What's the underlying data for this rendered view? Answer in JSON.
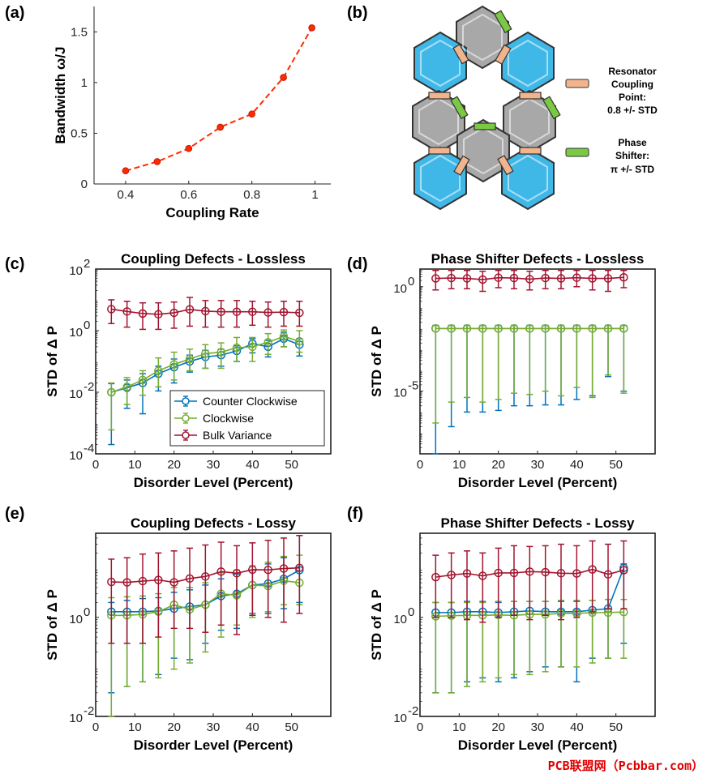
{
  "panel_labels": [
    "(a)",
    "(b)",
    "(c)",
    "(d)",
    "(e)",
    "(f)"
  ],
  "annotations": {
    "resonator": [
      "Resonator",
      "Coupling",
      "Point:",
      "0.8 +/- STD"
    ],
    "phase": [
      "Phase",
      "Shifter:",
      "π +/- STD"
    ]
  },
  "watermark": "PCB联盟网（Pcbbar.com）",
  "colors": {
    "ccw": "#0072BD",
    "cw": "#77AC30",
    "bulk": "#A2142F",
    "red": "#ff2a00",
    "cyan": "#3fb8e8",
    "gray": "#a8a8a8",
    "green": "#7ac943",
    "tan": "#f2b48c"
  },
  "chart_data": [
    {
      "id": "a",
      "type": "line",
      "title": "",
      "xlabel": "Coupling Rate",
      "ylabel": "Bandwidth ω/J",
      "xlim": [
        0.3,
        1.05
      ],
      "ylim": [
        0,
        1.75
      ],
      "xticks": [
        0.4,
        0.6,
        0.8,
        1
      ],
      "xticklabels": [
        "0.4",
        "0.6",
        "0.8",
        "1"
      ],
      "yticks": [
        0,
        0.5,
        1,
        1.5
      ],
      "yticklabels": [
        "0",
        "0.5",
        "1",
        "1.5"
      ],
      "series": [
        {
          "name": "Bandwidth",
          "x": [
            0.4,
            0.5,
            0.6,
            0.7,
            0.8,
            0.9,
            0.99
          ],
          "values": [
            0.13,
            0.22,
            0.35,
            0.56,
            0.69,
            1.05,
            1.54
          ]
        }
      ]
    },
    {
      "id": "c",
      "type": "line",
      "scale": "log",
      "title": "Coupling Defects - Lossless",
      "xlabel": "Disorder Level (Percent)",
      "ylabel": "STD of Δ P",
      "xlim": [
        0,
        60
      ],
      "ylim": [
        0.0001,
        100
      ],
      "xticks": [
        0,
        10,
        20,
        30,
        40,
        50
      ],
      "xticklabels": [
        "0",
        "10",
        "20",
        "30",
        "40",
        "50"
      ],
      "yticks": [
        0.0001,
        0.01,
        1,
        100
      ],
      "yticklabels": [
        [
          "10",
          "-4"
        ],
        [
          "10",
          "-2"
        ],
        [
          "10",
          "0"
        ],
        [
          "10",
          "2"
        ]
      ],
      "legend": [
        "Counter Clockwise",
        "Clockwise",
        "Bulk Variance"
      ],
      "x": [
        4,
        8,
        12,
        16,
        20,
        24,
        28,
        32,
        36,
        40,
        44,
        48,
        52
      ],
      "series": [
        {
          "name": "Counter Clockwise",
          "values": [
            0.01,
            0.014,
            0.02,
            0.04,
            0.065,
            0.1,
            0.14,
            0.16,
            0.22,
            0.38,
            0.3,
            0.55,
            0.35
          ],
          "lower": [
            0.0002,
            0.003,
            0.002,
            0.011,
            0.02,
            0.045,
            0.06,
            0.07,
            0.1,
            0.19,
            0.14,
            0.3,
            0.15
          ],
          "upper": [
            0.019,
            0.025,
            0.04,
            0.07,
            0.12,
            0.16,
            0.23,
            0.25,
            0.32,
            0.55,
            0.48,
            0.9,
            0.55
          ]
        },
        {
          "name": "Clockwise",
          "values": [
            0.01,
            0.015,
            0.025,
            0.05,
            0.08,
            0.12,
            0.18,
            0.2,
            0.28,
            0.3,
            0.42,
            0.65,
            0.45
          ],
          "lower": [
            0.0006,
            0.004,
            0.008,
            0.015,
            0.025,
            0.05,
            0.06,
            0.06,
            0.1,
            0.1,
            0.17,
            0.3,
            0.2
          ],
          "upper": [
            0.02,
            0.03,
            0.05,
            0.13,
            0.2,
            0.25,
            0.35,
            0.4,
            0.6,
            0.6,
            0.8,
            1.05,
            1.0
          ]
        },
        {
          "name": "Bulk Variance",
          "values": [
            5.0,
            4.2,
            3.6,
            3.4,
            3.8,
            4.9,
            4.3,
            4.1,
            4.1,
            4.1,
            3.9,
            4.0,
            3.8
          ],
          "lower": [
            1.7,
            1.3,
            1.1,
            1.1,
            1.2,
            1.4,
            1.3,
            1.3,
            1.3,
            1.5,
            1.3,
            1.4,
            1.4
          ],
          "upper": [
            10.0,
            9.0,
            8.0,
            8.0,
            8.5,
            12.0,
            9.5,
            9.5,
            9.5,
            9.0,
            8.5,
            9.0,
            9.0
          ]
        }
      ]
    },
    {
      "id": "d",
      "type": "line",
      "scale": "log",
      "title": "Phase Shifter Defects - Lossless",
      "xlabel": "Disorder Level (Percent)",
      "ylabel": "STD of Δ P",
      "xlim": [
        0,
        60
      ],
      "ylim": [
        1e-08,
        7
      ],
      "xticks": [
        0,
        10,
        20,
        30,
        40,
        50
      ],
      "xticklabels": [
        "0",
        "10",
        "20",
        "30",
        "40",
        "50"
      ],
      "yticks": [
        1e-05,
        1
      ],
      "yticklabels": [
        [
          "10",
          "-5"
        ],
        [
          "10",
          "0"
        ]
      ],
      "x": [
        4,
        8,
        12,
        16,
        20,
        24,
        28,
        32,
        36,
        40,
        44,
        48,
        52
      ],
      "series": [
        {
          "name": "Counter Clockwise",
          "values": [
            0.01,
            0.01,
            0.01,
            0.01,
            0.01,
            0.01,
            0.01,
            0.01,
            0.01,
            0.01,
            0.01,
            0.01,
            0.01
          ],
          "lower": [
            1e-08,
            2e-07,
            1e-06,
            1e-06,
            1.2e-06,
            2e-06,
            2e-06,
            2.2e-06,
            2.2e-06,
            4e-06,
            6e-06,
            5e-05,
            1e-05
          ],
          "upper": [
            0.014,
            0.014,
            0.014,
            0.014,
            0.014,
            0.014,
            0.014,
            0.014,
            0.014,
            0.014,
            0.014,
            0.014,
            0.014
          ]
        },
        {
          "name": "Clockwise",
          "values": [
            0.01,
            0.01,
            0.01,
            0.01,
            0.01,
            0.01,
            0.01,
            0.01,
            0.01,
            0.01,
            0.01,
            0.01,
            0.01
          ],
          "lower": [
            3e-07,
            3e-06,
            5e-06,
            3e-06,
            4e-06,
            8e-06,
            7e-06,
            1e-05,
            6e-06,
            1.5e-05,
            5e-06,
            6e-05,
            8e-06
          ],
          "upper": [
            0.014,
            0.014,
            0.014,
            0.014,
            0.014,
            0.014,
            0.014,
            0.014,
            0.014,
            0.014,
            0.014,
            0.014,
            0.014
          ]
        },
        {
          "name": "Bulk Variance",
          "values": [
            2.5,
            2.6,
            2.5,
            2.2,
            2.7,
            2.6,
            2.3,
            2.6,
            2.5,
            2.7,
            2.5,
            2.5,
            2.8
          ],
          "lower": [
            0.7,
            0.8,
            0.8,
            0.6,
            0.9,
            0.8,
            0.7,
            0.8,
            0.8,
            1.0,
            0.7,
            0.6,
            0.9
          ],
          "upper": [
            6.0,
            6.0,
            6.0,
            5.5,
            6.0,
            6.0,
            5.5,
            6.0,
            6.0,
            6.0,
            6.0,
            6.0,
            6.0
          ]
        }
      ]
    },
    {
      "id": "e",
      "type": "line",
      "scale": "log",
      "title": "Coupling Defects - Lossy",
      "xlabel": "Disorder Level (Percent)",
      "ylabel": "STD of Δ P",
      "xlim": [
        0,
        60
      ],
      "ylim": [
        0.01,
        50
      ],
      "xticks": [
        0,
        10,
        20,
        30,
        40,
        50
      ],
      "xticklabels": [
        "0",
        "10",
        "20",
        "30",
        "40",
        "50"
      ],
      "yticks": [
        0.01,
        1
      ],
      "yticklabels": [
        [
          "10",
          "-2"
        ],
        [
          "10",
          "0"
        ]
      ],
      "x": [
        4,
        8,
        12,
        16,
        20,
        24,
        28,
        32,
        36,
        40,
        44,
        48,
        52
      ],
      "series": [
        {
          "name": "Counter Clockwise",
          "values": [
            1.3,
            1.3,
            1.3,
            1.35,
            1.5,
            1.65,
            1.8,
            2.7,
            3.0,
            4.5,
            4.8,
            6.0,
            9.0
          ],
          "lower": [
            0.03,
            0.04,
            0.05,
            0.07,
            0.15,
            0.14,
            0.3,
            0.55,
            0.6,
            1.2,
            1.2,
            1.5,
            2.0
          ],
          "upper": [
            2.0,
            2.2,
            2.4,
            2.5,
            3.2,
            3.6,
            4.5,
            6.0,
            7.5,
            9.0,
            12.0,
            16.0,
            45.0
          ]
        },
        {
          "name": "Clockwise",
          "values": [
            1.1,
            1.1,
            1.15,
            1.3,
            1.8,
            1.45,
            1.8,
            3.0,
            2.8,
            4.5,
            4.3,
            5.5,
            5.0
          ],
          "lower": [
            0.01,
            0.04,
            0.05,
            0.06,
            0.09,
            0.12,
            0.2,
            0.4,
            0.7,
            1.0,
            1.3,
            1.8,
            1.8
          ],
          "upper": [
            2.5,
            2.6,
            2.7,
            3.0,
            4.0,
            4.0,
            5.0,
            8.0,
            9.0,
            11.0,
            13.0,
            17.0,
            18.0
          ]
        },
        {
          "name": "Bulk Variance",
          "values": [
            5.2,
            5.1,
            5.4,
            5.7,
            5.1,
            6.1,
            6.7,
            8.4,
            7.8,
            9.2,
            9.1,
            9.7,
            10.0
          ],
          "lower": [
            0.3,
            0.3,
            0.3,
            0.4,
            0.6,
            0.6,
            0.5,
            0.7,
            0.45,
            1.1,
            1.0,
            0.8,
            1.2
          ],
          "upper": [
            15.0,
            16.0,
            19.0,
            20.0,
            22.0,
            25.0,
            29.0,
            33.0,
            28.0,
            32.0,
            36.0,
            40.0,
            45.0
          ]
        }
      ]
    },
    {
      "id": "f",
      "type": "line",
      "scale": "log",
      "title": "Phase Shifter Defects - Lossy",
      "xlabel": "Disorder Level (Percent)",
      "ylabel": "STD of Δ P",
      "xlim": [
        0,
        60
      ],
      "ylim": [
        0.01,
        50
      ],
      "xticks": [
        0,
        10,
        20,
        30,
        40,
        50
      ],
      "xticklabels": [
        "0",
        "10",
        "20",
        "30",
        "40",
        "50"
      ],
      "yticks": [
        0.01,
        1
      ],
      "yticklabels": [
        [
          "10",
          "-2"
        ],
        [
          "10",
          "0"
        ]
      ],
      "x": [
        4,
        8,
        12,
        16,
        20,
        24,
        28,
        32,
        36,
        40,
        44,
        48,
        52
      ],
      "series": [
        {
          "name": "Counter Clockwise",
          "values": [
            1.25,
            1.25,
            1.3,
            1.3,
            1.25,
            1.3,
            1.35,
            1.3,
            1.3,
            1.3,
            1.4,
            1.5,
            10.0
          ],
          "lower": [
            0.03,
            0.03,
            0.05,
            0.06,
            0.05,
            0.06,
            0.08,
            0.1,
            0.1,
            0.05,
            0.15,
            0.15,
            0.3
          ],
          "upper": [
            2.0,
            2.0,
            2.1,
            2.1,
            2.0,
            2.1,
            2.1,
            2.1,
            2.1,
            2.1,
            2.2,
            2.3,
            12.0
          ]
        },
        {
          "name": "Clockwise",
          "values": [
            1.05,
            1.08,
            1.1,
            1.1,
            1.12,
            1.1,
            1.15,
            1.15,
            1.2,
            1.2,
            1.25,
            1.25,
            1.28
          ],
          "lower": [
            0.03,
            0.03,
            0.04,
            0.05,
            0.06,
            0.07,
            0.07,
            0.08,
            0.1,
            0.1,
            0.12,
            0.15,
            0.15
          ],
          "upper": [
            2.0,
            2.0,
            2.0,
            2.0,
            2.1,
            2.1,
            2.1,
            2.1,
            2.2,
            2.2,
            2.2,
            2.3,
            2.3
          ]
        },
        {
          "name": "Bulk Variance",
          "values": [
            6.5,
            7.2,
            7.7,
            6.9,
            7.9,
            7.9,
            8.4,
            8.2,
            7.8,
            7.7,
            9.3,
            7.4,
            9.0
          ],
          "lower": [
            1.0,
            1.0,
            0.9,
            0.8,
            1.0,
            1.1,
            0.9,
            1.1,
            0.9,
            1.0,
            1.3,
            1.5,
            1.5
          ],
          "upper": [
            18.0,
            20.0,
            22.0,
            20.0,
            25.0,
            28.0,
            27.0,
            28.0,
            30.0,
            28.0,
            35.0,
            30.0,
            35.0
          ]
        }
      ]
    }
  ]
}
